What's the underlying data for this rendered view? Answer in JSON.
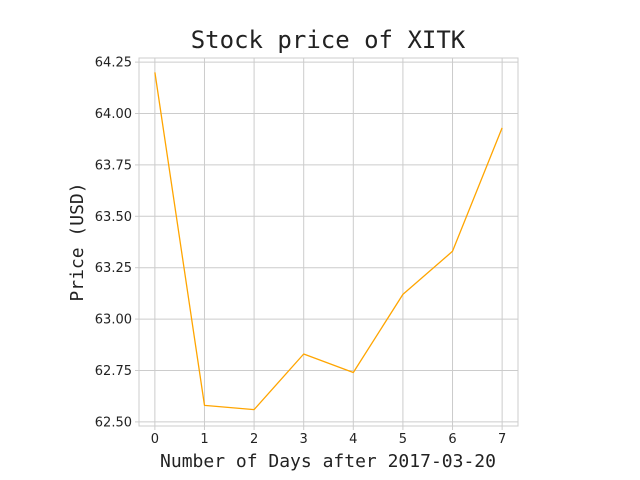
{
  "chart_data": {
    "type": "line",
    "title": "Stock price of XITK",
    "xlabel": "Number of Days after 2017-03-20",
    "ylabel": "Price (USD)",
    "x": [
      0,
      1,
      2,
      3,
      4,
      5,
      6,
      7
    ],
    "series": [
      {
        "values": [
          64.2,
          62.58,
          62.56,
          62.83,
          62.74,
          63.12,
          63.33,
          63.93
        ],
        "color": "#ffa500"
      }
    ],
    "xlim": [
      -0.32,
      7.32
    ],
    "ylim": [
      62.48,
      64.27
    ],
    "xticks": [
      0,
      1,
      2,
      3,
      4,
      5,
      6,
      7
    ],
    "yticks": [
      62.5,
      62.75,
      63.0,
      63.25,
      63.5,
      63.75,
      64.0,
      64.25
    ],
    "ytick_labels": [
      "62.50",
      "62.75",
      "63.00",
      "63.25",
      "63.50",
      "63.75",
      "64.00",
      "64.25"
    ],
    "grid": true,
    "legend": false
  }
}
